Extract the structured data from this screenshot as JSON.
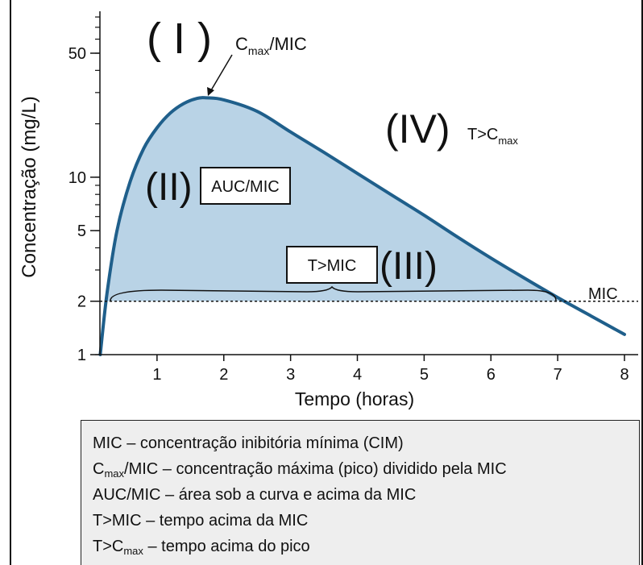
{
  "chart_data": {
    "type": "area",
    "xlabel": "Tempo (horas)",
    "ylabel": "Concentração (mg/L)",
    "xlim": [
      0,
      8
    ],
    "ylim": [
      1,
      80
    ],
    "y_scale": "log",
    "x_ticks": [
      "1",
      "2",
      "3",
      "4",
      "5",
      "6",
      "7",
      "8"
    ],
    "y_ticks": [
      "1",
      "2",
      "5",
      "10",
      "50"
    ],
    "y_tick_values": [
      1,
      2,
      5,
      10,
      50
    ],
    "series": [
      {
        "x": [
          0.15,
          0.25,
          0.4,
          0.6,
          0.8,
          1.0,
          1.2,
          1.4,
          1.6,
          1.75,
          2.0,
          2.5,
          3.0,
          3.5,
          4.0,
          4.5,
          5.0,
          5.5,
          6.0,
          6.5,
          7.0,
          7.5,
          8.0
        ],
        "y": [
          1.0,
          2.2,
          5.0,
          9.5,
          14.5,
          19.0,
          23.0,
          26.0,
          27.8,
          28.0,
          27.3,
          23.5,
          18.0,
          13.8,
          10.5,
          8.0,
          6.1,
          4.6,
          3.5,
          2.7,
          2.1,
          1.65,
          1.3
        ]
      }
    ],
    "mic_value": 2,
    "mic_label": "MIC",
    "annotations": {
      "region_1": "( I )",
      "cmax_label": {
        "main": "C",
        "sub": "max",
        "rest": "/MIC"
      },
      "region_4": "(IV)",
      "t_cmax_label": {
        "main": "T>C",
        "sub": "max",
        "rest": ""
      },
      "region_2": "(II)",
      "auc_label": "AUC/MIC",
      "tmic_label": "T>MIC",
      "region_3": "(III)"
    },
    "colors": {
      "line": "#1f5f8b",
      "fill": "#b9d3e6",
      "mic_line": "#111111"
    }
  },
  "legend": [
    {
      "main": "MIC",
      "sub": "",
      "rest": " – concentração inibitória mínima (CIM)"
    },
    {
      "main": "C",
      "sub": "max",
      "rest": "/MIC – concentração máxima (pico) dividido pela MIC"
    },
    {
      "main": "AUC/MIC",
      "sub": "",
      "rest": " – área sob a curva e acima da MIC"
    },
    {
      "main": "T>MIC",
      "sub": "",
      "rest": " – tempo acima da MIC"
    },
    {
      "main": "T>C",
      "sub": "max",
      "rest": " – tempo acima do pico"
    }
  ]
}
